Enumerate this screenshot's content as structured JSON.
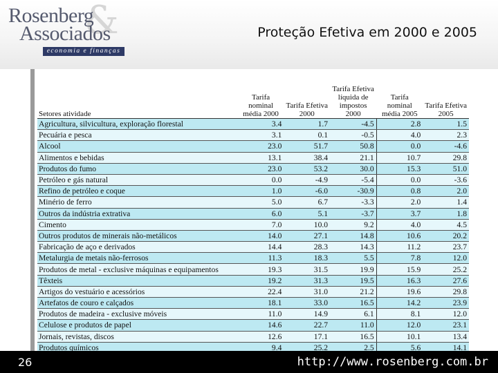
{
  "logo": {
    "line1": "Rosenberg",
    "line2": "Associados",
    "amp": "&",
    "tagline": "economia e finanças"
  },
  "slide": {
    "title": "Proteção Efetiva em 2000 e 2005"
  },
  "table": {
    "headers": {
      "sector": "Setores atividade",
      "col1": "Tarifa nominal média 2000",
      "col2": "Tarifa Efetiva 2000",
      "col3": "Tarifa Efetiva líquida de impostos 2000",
      "col4": "Tarifa nominal média 2005",
      "col5": "Tarifa Efetiva 2005"
    },
    "rows": [
      {
        "sector": "Agricultura, silvicultura, exploração florestal",
        "v": [
          "3.4",
          "1.7",
          "-4.5",
          "2.8",
          "1.5"
        ]
      },
      {
        "sector": "Pecuária e pesca",
        "v": [
          "3.1",
          "0.1",
          "-0.5",
          "4.0",
          "2.3"
        ]
      },
      {
        "sector": "Alcool",
        "v": [
          "23.0",
          "51.7",
          "50.8",
          "0.0",
          "-4.6"
        ]
      },
      {
        "sector": "Alimentos e bebidas",
        "v": [
          "13.1",
          "38.4",
          "21.1",
          "10.7",
          "29.8"
        ]
      },
      {
        "sector": "Produtos do fumo",
        "v": [
          "23.0",
          "53.2",
          "30.0",
          "15.3",
          "51.0"
        ]
      },
      {
        "sector": "Petróleo e gás natural",
        "v": [
          "0.0",
          "-4.9",
          "-5.4",
          "0.0",
          "-3.6"
        ]
      },
      {
        "sector": "Refino de petróleo e coque",
        "v": [
          "1.0",
          "-6.0",
          "-30.9",
          "0.8",
          "2.0"
        ]
      },
      {
        "sector": "Minério de ferro",
        "v": [
          "5.0",
          "6.7",
          "-3.3",
          "2.0",
          "1.4"
        ]
      },
      {
        "sector": "Outros da indústria extrativa",
        "v": [
          "6.0",
          "5.1",
          "-3.7",
          "3.7",
          "1.8"
        ]
      },
      {
        "sector": "Cimento",
        "v": [
          "7.0",
          "10.0",
          "9.2",
          "4.0",
          "4.5"
        ]
      },
      {
        "sector": "Outros produtos de minerais não-metálicos",
        "v": [
          "14.0",
          "27.1",
          "14.8",
          "10.6",
          "20.2"
        ]
      },
      {
        "sector": "Fabricação de aço e derivados",
        "v": [
          "14.4",
          "28.3",
          "14.3",
          "11.2",
          "23.7"
        ]
      },
      {
        "sector": "Metalurgia de metais não-ferrosos",
        "v": [
          "11.3",
          "18.3",
          "5.5",
          "7.8",
          "12.0"
        ]
      },
      {
        "sector": "Produtos de metal - exclusive máquinas e equipamentos",
        "v": [
          "19.3",
          "31.5",
          "19.9",
          "15.9",
          "25.2"
        ]
      },
      {
        "sector": "Têxteis",
        "v": [
          "19.2",
          "31.3",
          "19.5",
          "16.3",
          "27.6"
        ]
      },
      {
        "sector": "Artigos do vestuário e acessórios",
        "v": [
          "22.4",
          "31.0",
          "21.2",
          "19.6",
          "29.8"
        ]
      },
      {
        "sector": "Artefatos de couro e calçados",
        "v": [
          "18.1",
          "33.0",
          "16.5",
          "14.2",
          "23.9"
        ]
      },
      {
        "sector": "Produtos de madeira - exclusive móveis",
        "v": [
          "11.0",
          "14.9",
          "6.1",
          "8.1",
          "12.0"
        ]
      },
      {
        "sector": "Celulose e produtos de papel",
        "v": [
          "14.6",
          "22.7",
          "11.0",
          "12.0",
          "23.1"
        ]
      },
      {
        "sector": "Jornais, revistas, discos",
        "v": [
          "12.6",
          "17.1",
          "16.5",
          "10.1",
          "13.4"
        ]
      },
      {
        "sector": "Produtos químicos",
        "v": [
          "9.4",
          "25.2",
          "2.5",
          "5.6",
          "14.1"
        ]
      }
    ]
  },
  "footer": {
    "page_number": "26",
    "url": "http://www.rosenberg.com.br"
  }
}
